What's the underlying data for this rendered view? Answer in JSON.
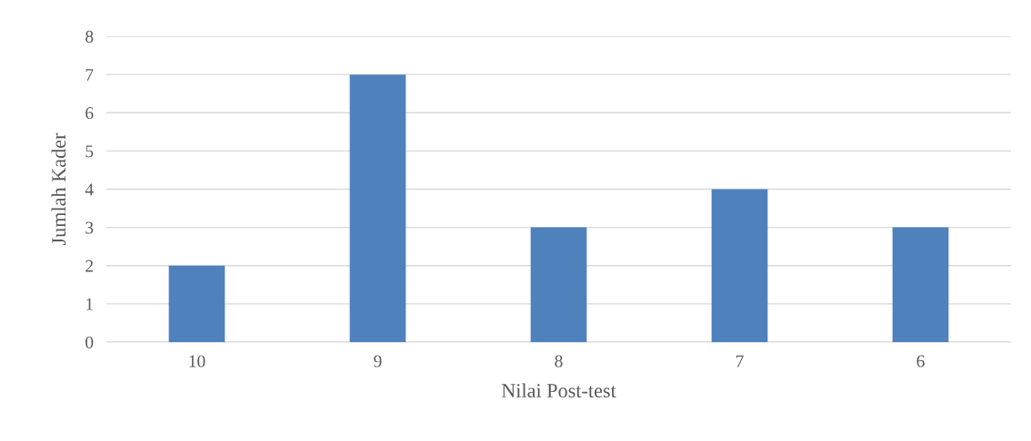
{
  "chart_data": {
    "type": "bar",
    "xlabel": "Nilai Post-test",
    "ylabel": "Jumlah Kader",
    "categories": [
      "10",
      "9",
      "8",
      "7",
      "6"
    ],
    "values": [
      2,
      7,
      3,
      4,
      3
    ],
    "color": "#4f81bd",
    "ylim": [
      0,
      8
    ],
    "yticks": [
      0,
      1,
      2,
      3,
      4,
      5,
      6,
      7,
      8
    ],
    "grid": "y",
    "legend": false
  }
}
